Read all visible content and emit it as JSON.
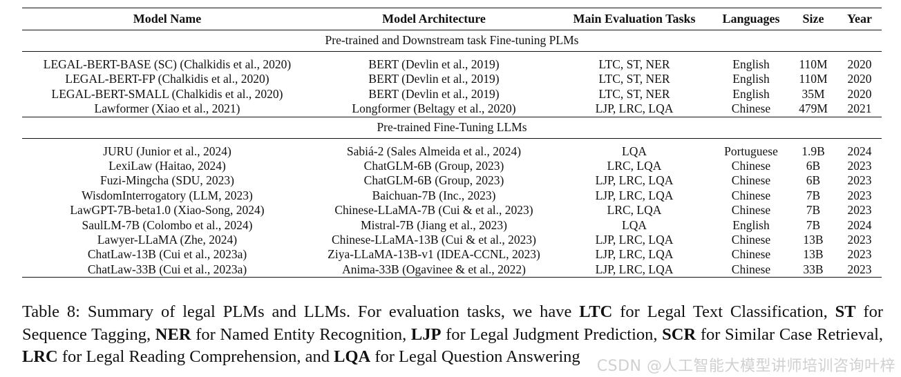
{
  "headers": [
    "Model Name",
    "Model Architecture",
    "Main Evaluation Tasks",
    "Languages",
    "Size",
    "Year"
  ],
  "sections": [
    {
      "title": "Pre-trained and Downstream task Fine-tuning PLMs",
      "rows": [
        [
          "LEGAL-BERT-BASE (SC) (Chalkidis et al., 2020)",
          "BERT  (Devlin et al., 2019)",
          "LTC, ST, NER",
          "English",
          "110M",
          "2020"
        ],
        [
          "LEGAL-BERT-FP (Chalkidis et al., 2020)",
          "BERT  (Devlin et al., 2019)",
          "LTC, ST, NER",
          "English",
          "110M",
          "2020"
        ],
        [
          "LEGAL-BERT-SMALL (Chalkidis et al., 2020)",
          "BERT  (Devlin et al., 2019)",
          "LTC, ST, NER",
          "English",
          "35M",
          "2020"
        ],
        [
          "Lawformer (Xiao et al., 2021)",
          "Longformer (Beltagy et al., 2020)",
          "LJP, LRC, LQA",
          "Chinese",
          "479M",
          "2021"
        ]
      ]
    },
    {
      "title": "Pre-trained Fine-Tuning LLMs",
      "rows": [
        [
          "JURU (Junior et al., 2024)",
          "Sabiá-2 (Sales Almeida et al., 2024)",
          "LQA",
          "Portuguese",
          "1.9B",
          "2024"
        ],
        [
          "LexiLaw (Haitao, 2024)",
          "ChatGLM-6B (Group, 2023)",
          "LRC, LQA",
          "Chinese",
          "6B",
          "2023"
        ],
        [
          "Fuzi-Mingcha (SDU, 2023)",
          "ChatGLM-6B (Group, 2023)",
          "LJP, LRC, LQA",
          "Chinese",
          "6B",
          "2023"
        ],
        [
          "WisdomInterrogatory (LLM, 2023)",
          "Baichuan-7B (Inc., 2023)",
          "LJP, LRC, LQA",
          "Chinese",
          "7B",
          "2023"
        ],
        [
          "LawGPT-7B-beta1.0 (Xiao-Song, 2024)",
          "Chinese-LLaMA-7B (Cui & et al., 2023)",
          "LRC, LQA",
          "Chinese",
          "7B",
          "2023"
        ],
        [
          "SaulLM-7B (Colombo et al., 2024)",
          "Mistral-7B (Jiang et al., 2023)",
          "LQA",
          "English",
          "7B",
          "2024"
        ],
        [
          "Lawyer-LLaMA (Zhe, 2024)",
          "Chinese-LLaMA-13B (Cui & et al., 2023)",
          "LJP, LRC, LQA",
          "Chinese",
          "13B",
          "2023"
        ],
        [
          "ChatLaw-13B (Cui et al., 2023a)",
          "Ziya-LLaMA-13B-v1 (IDEA-CCNL, 2023)",
          "LJP, LRC, LQA",
          "Chinese",
          "13B",
          "2023"
        ],
        [
          "ChatLaw-33B (Cui et al., 2023a)",
          "Anima-33B (Ogavinee & et al., 2022)",
          "LJP, LRC, LQA",
          "Chinese",
          "33B",
          "2023"
        ]
      ]
    }
  ],
  "caption": {
    "label": "Table 8:",
    "lead": "Summary of legal PLMs and LLMs. For evaluation tasks, we have",
    "abbrevs": [
      {
        "abbr": "LTC",
        "meaning": "for Legal Text Classification,"
      },
      {
        "abbr": "ST",
        "meaning": "for Sequence Tagging,"
      },
      {
        "abbr": "NER",
        "meaning": "for Named Entity Recognition,"
      },
      {
        "abbr": "LJP",
        "meaning": "for Legal Judgment Prediction,"
      },
      {
        "abbr": "SCR",
        "meaning": "for Similar Case Retrieval,"
      },
      {
        "abbr": "LRC",
        "meaning": "for Legal Reading Comprehension, and"
      },
      {
        "abbr": "LQA",
        "meaning": "for Legal Question Answering"
      }
    ]
  },
  "watermark": "CSDN @人工智能大模型讲师培训咨询叶梓"
}
